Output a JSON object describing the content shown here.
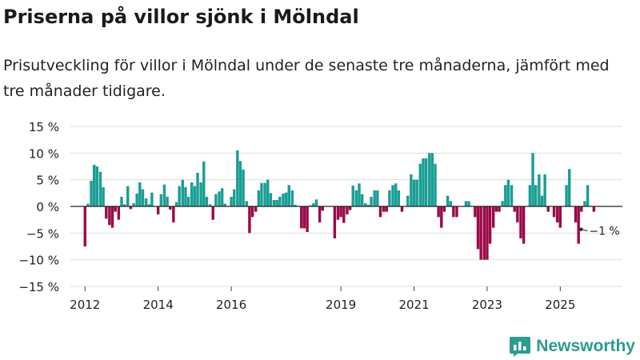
{
  "header": {
    "title": "Priserna på villor sjönk i Mölndal",
    "subtitle": "Prisutveckling för villor i Mölndal under de senaste tre månaderna, jämfört med tre månader tidigare."
  },
  "brand": {
    "name": "Newsworthy",
    "icon": "newsworthy-logo-icon"
  },
  "colors": {
    "positive": "#1a9e94",
    "negative": "#9b0a48",
    "grid": "#dddddd",
    "axis": "#222222"
  },
  "chart_data": {
    "type": "bar",
    "title": "Priserna på villor sjönk i Mölndal",
    "xlabel": "",
    "ylabel": "",
    "ylim": [
      -15,
      15
    ],
    "yticks": [
      15,
      10,
      5,
      0,
      -5,
      -10,
      -15
    ],
    "ytick_labels": [
      "15 %",
      "10 %",
      "5 %",
      "0 %",
      "−5 %",
      "−10 %",
      "−15 %"
    ],
    "xlim": [
      2011.6,
      2026.7
    ],
    "xticks": [
      2012,
      2014,
      2016,
      2019,
      2021,
      2023,
      2025
    ],
    "xtick_labels": [
      "2012",
      "2014",
      "2016",
      "2019",
      "2021",
      "2023",
      "2025"
    ],
    "grid": true,
    "last_value_label": "−1 %",
    "bar_width_years": 0.075,
    "series": [
      {
        "name": "Prisutveckling (%)",
        "points": [
          {
            "x": 2012.0,
            "y": -7.5
          },
          {
            "x": 2012.08,
            "y": 0.5
          },
          {
            "x": 2012.17,
            "y": 4.8
          },
          {
            "x": 2012.25,
            "y": 7.8
          },
          {
            "x": 2012.33,
            "y": 7.5
          },
          {
            "x": 2012.42,
            "y": 6.5
          },
          {
            "x": 2012.5,
            "y": 3.6
          },
          {
            "x": 2012.58,
            "y": -2.3
          },
          {
            "x": 2012.67,
            "y": -3.5
          },
          {
            "x": 2012.75,
            "y": -4.0
          },
          {
            "x": 2012.83,
            "y": -1.0
          },
          {
            "x": 2012.92,
            "y": -2.5
          },
          {
            "x": 2013.0,
            "y": 1.8
          },
          {
            "x": 2013.08,
            "y": 0.4
          },
          {
            "x": 2013.17,
            "y": 3.8
          },
          {
            "x": 2013.25,
            "y": -0.5
          },
          {
            "x": 2013.33,
            "y": 0.6
          },
          {
            "x": 2013.42,
            "y": 2.4
          },
          {
            "x": 2013.5,
            "y": 4.5
          },
          {
            "x": 2013.58,
            "y": 3.2
          },
          {
            "x": 2013.67,
            "y": 1.5
          },
          {
            "x": 2013.75,
            "y": 0.4
          },
          {
            "x": 2013.83,
            "y": 2.6
          },
          {
            "x": 2014.0,
            "y": -1.5
          },
          {
            "x": 2014.08,
            "y": 2.3
          },
          {
            "x": 2014.17,
            "y": 4.1
          },
          {
            "x": 2014.25,
            "y": 1.8
          },
          {
            "x": 2014.33,
            "y": -0.6
          },
          {
            "x": 2014.42,
            "y": -3.0
          },
          {
            "x": 2014.5,
            "y": 0.8
          },
          {
            "x": 2014.58,
            "y": 3.8
          },
          {
            "x": 2014.67,
            "y": 5.0
          },
          {
            "x": 2014.75,
            "y": 3.6
          },
          {
            "x": 2014.83,
            "y": 1.8
          },
          {
            "x": 2014.92,
            "y": 4.5
          },
          {
            "x": 2015.0,
            "y": 3.8
          },
          {
            "x": 2015.08,
            "y": 6.3
          },
          {
            "x": 2015.17,
            "y": 4.5
          },
          {
            "x": 2015.25,
            "y": 8.4
          },
          {
            "x": 2015.33,
            "y": 1.8
          },
          {
            "x": 2015.42,
            "y": 0.4
          },
          {
            "x": 2015.5,
            "y": -2.5
          },
          {
            "x": 2015.58,
            "y": 2.3
          },
          {
            "x": 2015.67,
            "y": 2.8
          },
          {
            "x": 2015.75,
            "y": 3.4
          },
          {
            "x": 2015.83,
            "y": 0.5
          },
          {
            "x": 2016.0,
            "y": 1.8
          },
          {
            "x": 2016.08,
            "y": 3.2
          },
          {
            "x": 2016.17,
            "y": 10.5
          },
          {
            "x": 2016.25,
            "y": 8.5
          },
          {
            "x": 2016.33,
            "y": 6.9
          },
          {
            "x": 2016.42,
            "y": 1.0
          },
          {
            "x": 2016.5,
            "y": -5.0
          },
          {
            "x": 2016.58,
            "y": -2.0
          },
          {
            "x": 2016.67,
            "y": -1.0
          },
          {
            "x": 2016.75,
            "y": 3.0
          },
          {
            "x": 2016.83,
            "y": 4.4
          },
          {
            "x": 2016.92,
            "y": 4.4
          },
          {
            "x": 2017.0,
            "y": 5.0
          },
          {
            "x": 2017.08,
            "y": 2.5
          },
          {
            "x": 2017.17,
            "y": 1.2
          },
          {
            "x": 2017.25,
            "y": 1.2
          },
          {
            "x": 2017.33,
            "y": 1.8
          },
          {
            "x": 2017.42,
            "y": 2.4
          },
          {
            "x": 2017.5,
            "y": 2.6
          },
          {
            "x": 2017.58,
            "y": 4.0
          },
          {
            "x": 2017.67,
            "y": 3.0
          },
          {
            "x": 2017.75,
            "y": 0.3
          },
          {
            "x": 2017.92,
            "y": -4.1
          },
          {
            "x": 2018.0,
            "y": -4.1
          },
          {
            "x": 2018.08,
            "y": -4.8
          },
          {
            "x": 2018.17,
            "y": 0.2
          },
          {
            "x": 2018.25,
            "y": 0.6
          },
          {
            "x": 2018.33,
            "y": 1.3
          },
          {
            "x": 2018.42,
            "y": -3.0
          },
          {
            "x": 2018.5,
            "y": -0.8
          },
          {
            "x": 2018.83,
            "y": -6.0
          },
          {
            "x": 2018.92,
            "y": -2.5
          },
          {
            "x": 2019.0,
            "y": -2.0
          },
          {
            "x": 2019.08,
            "y": -3.1
          },
          {
            "x": 2019.17,
            "y": -1.5
          },
          {
            "x": 2019.25,
            "y": -0.7
          },
          {
            "x": 2019.33,
            "y": 3.9
          },
          {
            "x": 2019.42,
            "y": 3.0
          },
          {
            "x": 2019.5,
            "y": 4.3
          },
          {
            "x": 2019.58,
            "y": 2.3
          },
          {
            "x": 2019.67,
            "y": 0.6
          },
          {
            "x": 2019.75,
            "y": 0.3
          },
          {
            "x": 2019.83,
            "y": 1.8
          },
          {
            "x": 2019.92,
            "y": 3.0
          },
          {
            "x": 2020.0,
            "y": 3.0
          },
          {
            "x": 2020.08,
            "y": -2.0
          },
          {
            "x": 2020.17,
            "y": -1.0
          },
          {
            "x": 2020.25,
            "y": -1.0
          },
          {
            "x": 2020.33,
            "y": 3.0
          },
          {
            "x": 2020.42,
            "y": 4.0
          },
          {
            "x": 2020.5,
            "y": 4.3
          },
          {
            "x": 2020.58,
            "y": 3.0
          },
          {
            "x": 2020.67,
            "y": -1.0
          },
          {
            "x": 2020.83,
            "y": 2.0
          },
          {
            "x": 2020.92,
            "y": 6.0
          },
          {
            "x": 2021.0,
            "y": 5.0
          },
          {
            "x": 2021.08,
            "y": 5.0
          },
          {
            "x": 2021.17,
            "y": 8.0
          },
          {
            "x": 2021.25,
            "y": 9.0
          },
          {
            "x": 2021.33,
            "y": 9.0
          },
          {
            "x": 2021.42,
            "y": 10.0
          },
          {
            "x": 2021.5,
            "y": 10.0
          },
          {
            "x": 2021.58,
            "y": 8.0
          },
          {
            "x": 2021.67,
            "y": -2.0
          },
          {
            "x": 2021.75,
            "y": -4.0
          },
          {
            "x": 2021.83,
            "y": -1.0
          },
          {
            "x": 2021.92,
            "y": 2.0
          },
          {
            "x": 2022.0,
            "y": 1.0
          },
          {
            "x": 2022.08,
            "y": -2.0
          },
          {
            "x": 2022.17,
            "y": -2.0
          },
          {
            "x": 2022.42,
            "y": 1.0
          },
          {
            "x": 2022.5,
            "y": 1.0
          },
          {
            "x": 2022.67,
            "y": -2.0
          },
          {
            "x": 2022.75,
            "y": -8.0
          },
          {
            "x": 2022.83,
            "y": -10.0
          },
          {
            "x": 2022.92,
            "y": -10.0
          },
          {
            "x": 2023.0,
            "y": -10.0
          },
          {
            "x": 2023.08,
            "y": -7.0
          },
          {
            "x": 2023.17,
            "y": -4.0
          },
          {
            "x": 2023.25,
            "y": -1.0
          },
          {
            "x": 2023.33,
            "y": -1.0
          },
          {
            "x": 2023.42,
            "y": 1.0
          },
          {
            "x": 2023.5,
            "y": 4.0
          },
          {
            "x": 2023.58,
            "y": 5.0
          },
          {
            "x": 2023.67,
            "y": 4.0
          },
          {
            "x": 2023.75,
            "y": -1.0
          },
          {
            "x": 2023.83,
            "y": -3.0
          },
          {
            "x": 2023.92,
            "y": -6.0
          },
          {
            "x": 2024.0,
            "y": -7.0
          },
          {
            "x": 2024.17,
            "y": 4.0
          },
          {
            "x": 2024.25,
            "y": 10.0
          },
          {
            "x": 2024.33,
            "y": 4.0
          },
          {
            "x": 2024.42,
            "y": 6.0
          },
          {
            "x": 2024.5,
            "y": 2.0
          },
          {
            "x": 2024.58,
            "y": 6.0
          },
          {
            "x": 2024.67,
            "y": -1.0
          },
          {
            "x": 2024.83,
            "y": -2.0
          },
          {
            "x": 2024.92,
            "y": -3.0
          },
          {
            "x": 2025.0,
            "y": -4.0
          },
          {
            "x": 2025.17,
            "y": 4.0
          },
          {
            "x": 2025.25,
            "y": 7.0
          },
          {
            "x": 2025.42,
            "y": -3.0
          },
          {
            "x": 2025.5,
            "y": -7.0
          },
          {
            "x": 2025.58,
            "y": -1.0
          },
          {
            "x": 2025.67,
            "y": 1.0
          },
          {
            "x": 2025.75,
            "y": 4.0
          },
          {
            "x": 2025.92,
            "y": -1.0
          }
        ]
      }
    ]
  }
}
